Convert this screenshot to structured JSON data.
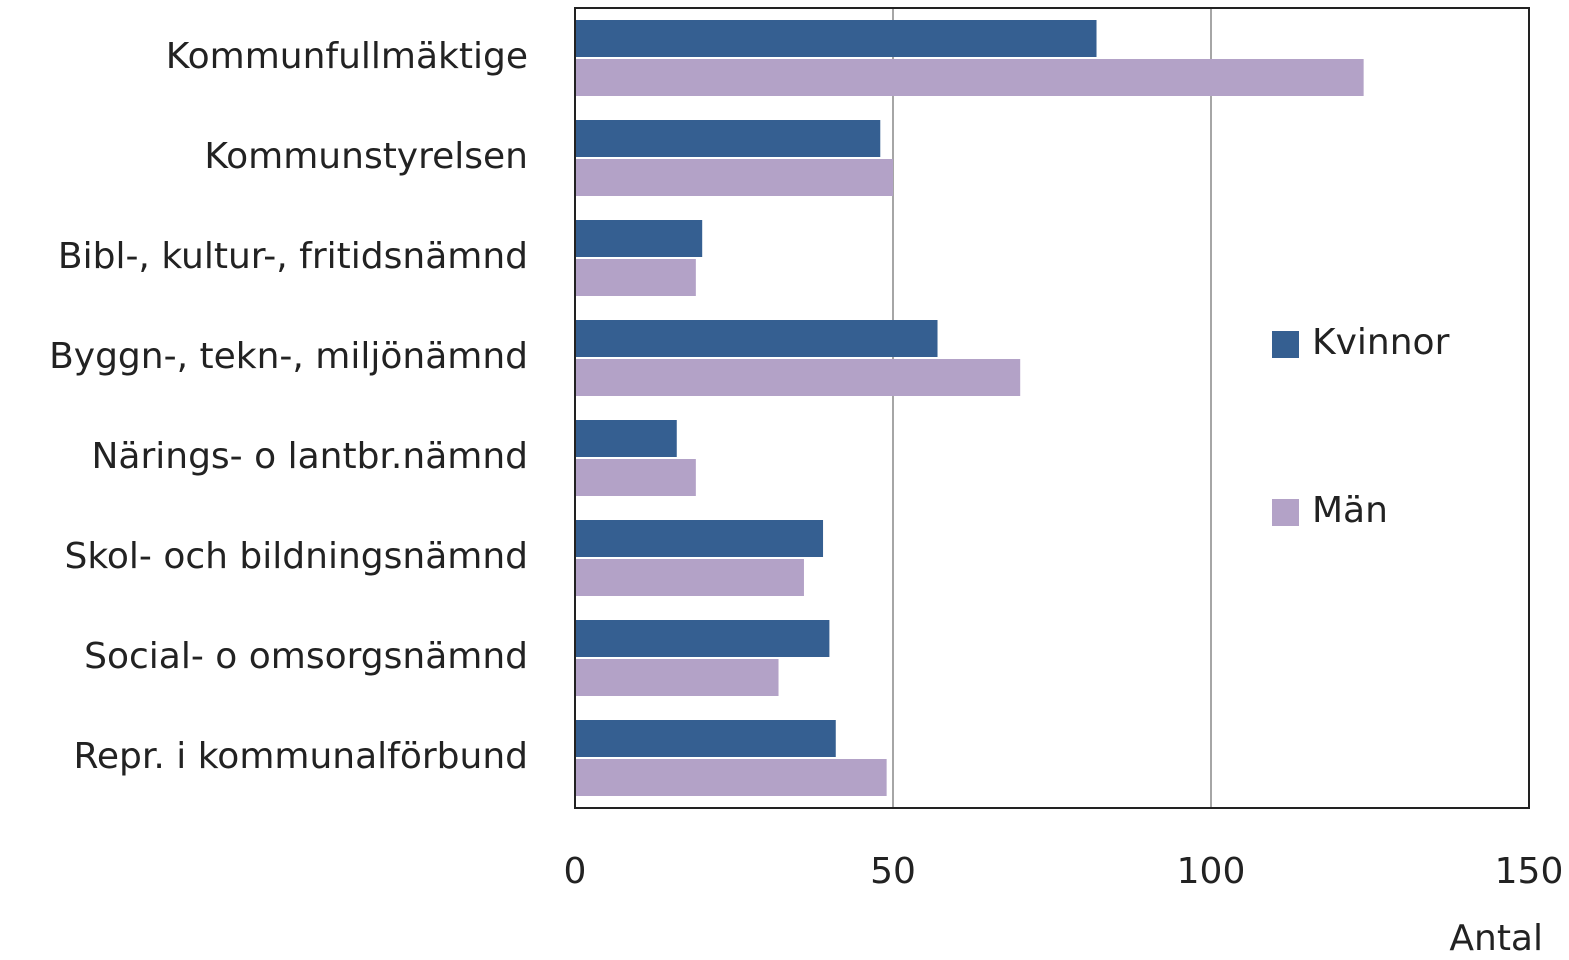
{
  "chart_data": {
    "type": "hbar",
    "categories": [
      "Kommunfullmäktige",
      "Kommunstyrelsen",
      "Bibl-, kultur-, fritidsnämnd",
      "Byggn-, tekn-, miljönämnd",
      "Närings- o lantbr.nämnd",
      "Skol- och bildningsnämnd",
      "Social- o omsorgsnämnd",
      "Repr. i kommunalförbund"
    ],
    "series": [
      {
        "name": "Kvinnor",
        "color": "#355f91",
        "values": [
          82,
          48,
          20,
          57,
          16,
          39,
          40,
          41
        ]
      },
      {
        "name": "Män",
        "color": "#b3a2c7",
        "values": [
          124,
          50,
          19,
          70,
          19,
          36,
          32,
          49
        ]
      }
    ],
    "xlabel": "Antal",
    "xlim": [
      0,
      150
    ],
    "xticks": [
      0,
      50,
      100,
      150
    ],
    "grid": true,
    "legend": "right"
  }
}
